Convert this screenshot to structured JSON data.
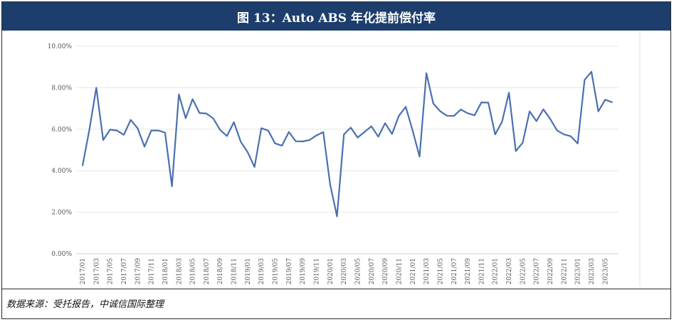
{
  "figure": {
    "title": "图 13：Auto ABS 年化提前偿付率",
    "source": "数据来源：受托报告，中诚信国际整理"
  },
  "colors": {
    "header_bg": "#1d3e6c",
    "line": "#4a70b0",
    "grid": "#e5e5e5"
  },
  "chart_data": {
    "type": "line",
    "title": "",
    "xlabel": "",
    "ylabel": "",
    "ylim": [
      0,
      0.1
    ],
    "y_ticks": [
      "0.00%",
      "2.00%",
      "4.00%",
      "6.00%",
      "8.00%",
      "10.00%"
    ],
    "x_tick_labels": [
      "2017/01",
      "2017/03",
      "2017/05",
      "2017/07",
      "2017/09",
      "2017/11",
      "2018/01",
      "2018/03",
      "2018/05",
      "2018/07",
      "2018/09",
      "2018/11",
      "2019/01",
      "2019/03",
      "2019/05",
      "2019/07",
      "2019/09",
      "2019/11",
      "2020/01",
      "2020/03",
      "2020/05",
      "2020/07",
      "2020/09",
      "2020/11",
      "2021/01",
      "2021/03",
      "2021/05",
      "2021/07",
      "2021/09",
      "2021/11",
      "2022/01",
      "2022/03",
      "2022/05",
      "2022/07",
      "2022/09",
      "2022/11",
      "2023/01",
      "2023/03",
      "2023/05"
    ],
    "grid": true,
    "legend": "none",
    "x": [
      "2017/01",
      "2017/02",
      "2017/03",
      "2017/04",
      "2017/05",
      "2017/06",
      "2017/07",
      "2017/08",
      "2017/09",
      "2017/10",
      "2017/11",
      "2017/12",
      "2018/01",
      "2018/02",
      "2018/03",
      "2018/04",
      "2018/05",
      "2018/06",
      "2018/07",
      "2018/08",
      "2018/09",
      "2018/10",
      "2018/11",
      "2018/12",
      "2019/01",
      "2019/02",
      "2019/03",
      "2019/04",
      "2019/05",
      "2019/06",
      "2019/07",
      "2019/08",
      "2019/09",
      "2019/10",
      "2019/11",
      "2019/12",
      "2020/01",
      "2020/02",
      "2020/03",
      "2020/04",
      "2020/05",
      "2020/06",
      "2020/07",
      "2020/08",
      "2020/09",
      "2020/10",
      "2020/11",
      "2020/12",
      "2021/01",
      "2021/02",
      "2021/03",
      "2021/04",
      "2021/05",
      "2021/06",
      "2021/07",
      "2021/08",
      "2021/09",
      "2021/10",
      "2021/11",
      "2021/12",
      "2022/01",
      "2022/02",
      "2022/03",
      "2022/04",
      "2022/05",
      "2022/06",
      "2022/07",
      "2022/08",
      "2022/09",
      "2022/10",
      "2022/11",
      "2022/12",
      "2023/01",
      "2023/02",
      "2023/03",
      "2023/04",
      "2023/05",
      "2023/06"
    ],
    "series": [
      {
        "values": [
          0.0425,
          0.06,
          0.08,
          0.0548,
          0.0598,
          0.0594,
          0.0573,
          0.0645,
          0.0605,
          0.0516,
          0.0594,
          0.0594,
          0.0584,
          0.0325,
          0.0768,
          0.0653,
          0.0745,
          0.0678,
          0.0676,
          0.0652,
          0.0597,
          0.0567,
          0.0634,
          0.054,
          0.049,
          0.0418,
          0.0605,
          0.0593,
          0.0532,
          0.0521,
          0.0587,
          0.0542,
          0.0541,
          0.0548,
          0.057,
          0.0586,
          0.0335,
          0.018,
          0.0575,
          0.0608,
          0.056,
          0.0587,
          0.0614,
          0.0564,
          0.0629,
          0.0577,
          0.0665,
          0.0708,
          0.0593,
          0.0468,
          0.087,
          0.0724,
          0.0687,
          0.0665,
          0.0664,
          0.0695,
          0.0677,
          0.0667,
          0.0729,
          0.0728,
          0.0575,
          0.0636,
          0.0776,
          0.0495,
          0.0535,
          0.0686,
          0.0639,
          0.0696,
          0.065,
          0.0594,
          0.0575,
          0.0566,
          0.0531,
          0.0838,
          0.0877,
          0.0686,
          0.0742,
          0.073
        ]
      }
    ]
  }
}
